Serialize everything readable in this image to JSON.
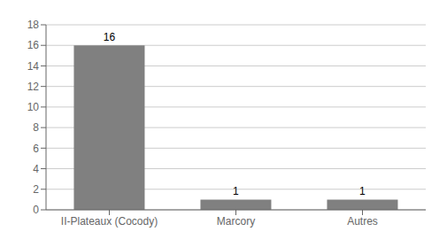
{
  "chart_data": {
    "type": "bar",
    "categories": [
      "II-Plateaux (Cocody)",
      "Marcory",
      "Autres"
    ],
    "values": [
      16,
      1,
      1
    ],
    "color": "#808080",
    "ylim": [
      0,
      18
    ],
    "yticks": [
      0,
      2,
      4,
      6,
      8,
      10,
      12,
      14,
      16,
      18
    ],
    "grid": true,
    "data_labels": true
  }
}
